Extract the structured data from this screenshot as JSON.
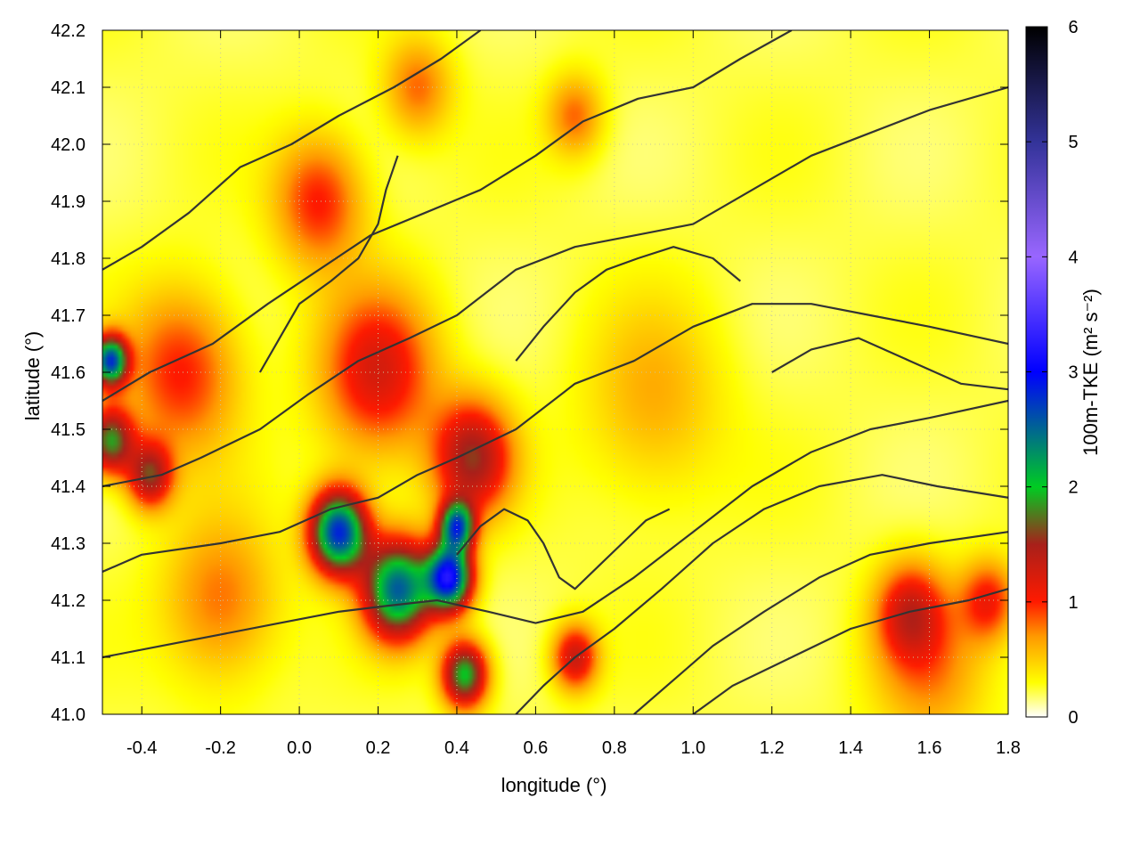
{
  "chart_data": {
    "type": "heatmap",
    "xlabel": "longitude (°)",
    "ylabel": "latitude (°)",
    "xlim": [
      -0.5,
      1.8
    ],
    "ylim": [
      41.0,
      42.2
    ],
    "xticks": [
      "-0.4",
      "-0.2",
      "0.0",
      "0.2",
      "0.4",
      "0.6",
      "0.8",
      "1.0",
      "1.2",
      "1.4",
      "1.6",
      "1.8"
    ],
    "xtick_values": [
      -0.4,
      -0.2,
      0.0,
      0.2,
      0.4,
      0.6,
      0.8,
      1.0,
      1.2,
      1.4,
      1.6,
      1.8
    ],
    "yticks": [
      "41.0",
      "41.1",
      "41.2",
      "41.3",
      "41.4",
      "41.5",
      "41.6",
      "41.7",
      "41.8",
      "41.9",
      "42.0",
      "42.1",
      "42.2"
    ],
    "ytick_values": [
      41.0,
      41.1,
      41.2,
      41.3,
      41.4,
      41.5,
      41.6,
      41.7,
      41.8,
      41.9,
      42.0,
      42.1,
      42.2
    ],
    "grid": true,
    "colorbar": {
      "label": "100m-TKE (m² s⁻²)",
      "range": [
        0,
        6
      ],
      "ticks": [
        "0",
        "1",
        "2",
        "3",
        "4",
        "5",
        "6"
      ],
      "tick_values": [
        0,
        1,
        2,
        3,
        4,
        5,
        6
      ],
      "colors": [
        {
          "v": 0.0,
          "c": "#ffffff"
        },
        {
          "v": 0.3,
          "c": "#ffff00"
        },
        {
          "v": 0.7,
          "c": "#ff9900"
        },
        {
          "v": 1.0,
          "c": "#ff1a00"
        },
        {
          "v": 1.5,
          "c": "#a8201a"
        },
        {
          "v": 2.0,
          "c": "#00cc22"
        },
        {
          "v": 3.0,
          "c": "#0000ff"
        },
        {
          "v": 4.0,
          "c": "#9966ff"
        },
        {
          "v": 5.0,
          "c": "#333399"
        },
        {
          "v": 6.0,
          "c": "#000000"
        }
      ]
    },
    "tke_hotspots": [
      {
        "lon": 0.1,
        "lat": 41.32,
        "value": 2.6,
        "spread": 0.05
      },
      {
        "lon": 0.25,
        "lat": 41.22,
        "value": 2.3,
        "spread": 0.06
      },
      {
        "lon": 0.38,
        "lat": 41.24,
        "value": 2.8,
        "spread": 0.04
      },
      {
        "lon": 0.42,
        "lat": 41.07,
        "value": 1.8,
        "spread": 0.04
      },
      {
        "lon": 0.4,
        "lat": 41.33,
        "value": 2.2,
        "spread": 0.03
      },
      {
        "lon": 0.44,
        "lat": 41.45,
        "value": 1.3,
        "spread": 0.07
      },
      {
        "lon": -0.48,
        "lat": 41.62,
        "value": 2.4,
        "spread": 0.03
      },
      {
        "lon": -0.48,
        "lat": 41.48,
        "value": 1.6,
        "spread": 0.04
      },
      {
        "lon": -0.38,
        "lat": 41.42,
        "value": 1.3,
        "spread": 0.04
      },
      {
        "lon": 0.2,
        "lat": 41.6,
        "value": 1.0,
        "spread": 0.1
      },
      {
        "lon": 0.05,
        "lat": 41.9,
        "value": 0.8,
        "spread": 0.08
      },
      {
        "lon": -0.3,
        "lat": 41.6,
        "value": 0.8,
        "spread": 0.1
      },
      {
        "lon": 0.7,
        "lat": 41.1,
        "value": 1.1,
        "spread": 0.04
      },
      {
        "lon": 1.55,
        "lat": 41.18,
        "value": 0.9,
        "spread": 0.06
      },
      {
        "lon": 1.75,
        "lat": 41.2,
        "value": 0.8,
        "spread": 0.05
      },
      {
        "lon": 1.6,
        "lat": 41.08,
        "value": 0.5,
        "spread": 0.1
      },
      {
        "lon": 0.3,
        "lat": 42.1,
        "value": 0.6,
        "spread": 0.06
      },
      {
        "lon": 0.7,
        "lat": 42.05,
        "value": 0.6,
        "spread": 0.05
      },
      {
        "lon": -0.2,
        "lat": 41.2,
        "value": 0.6,
        "spread": 0.1
      },
      {
        "lon": 0.9,
        "lat": 41.55,
        "value": 0.4,
        "spread": 0.12
      }
    ],
    "contours": [
      [
        [
          -0.5,
          41.25
        ],
        [
          -0.4,
          41.28
        ],
        [
          -0.2,
          41.3
        ],
        [
          -0.05,
          41.32
        ],
        [
          0.08,
          41.36
        ],
        [
          0.2,
          41.38
        ],
        [
          0.3,
          41.42
        ],
        [
          0.4,
          41.45
        ],
        [
          0.55,
          41.5
        ],
        [
          0.7,
          41.58
        ],
        [
          0.85,
          41.62
        ],
        [
          1.0,
          41.68
        ],
        [
          1.15,
          41.72
        ],
        [
          1.3,
          41.72
        ],
        [
          1.45,
          41.7
        ],
        [
          1.6,
          41.68
        ],
        [
          1.8,
          41.65
        ]
      ],
      [
        [
          -0.5,
          41.4
        ],
        [
          -0.35,
          41.42
        ],
        [
          -0.25,
          41.45
        ],
        [
          -0.1,
          41.5
        ],
        [
          0.02,
          41.56
        ],
        [
          0.15,
          41.62
        ],
        [
          0.28,
          41.66
        ],
        [
          0.4,
          41.7
        ],
        [
          0.55,
          41.78
        ],
        [
          0.7,
          41.82
        ],
        [
          0.85,
          41.84
        ],
        [
          1.0,
          41.86
        ],
        [
          1.15,
          41.92
        ],
        [
          1.3,
          41.98
        ],
        [
          1.45,
          42.02
        ],
        [
          1.6,
          42.06
        ],
        [
          1.8,
          42.1
        ]
      ],
      [
        [
          -0.5,
          41.55
        ],
        [
          -0.38,
          41.6
        ],
        [
          -0.22,
          41.65
        ],
        [
          -0.08,
          41.72
        ],
        [
          0.05,
          41.78
        ],
        [
          0.18,
          41.84
        ],
        [
          0.32,
          41.88
        ],
        [
          0.46,
          41.92
        ],
        [
          0.6,
          41.98
        ],
        [
          0.72,
          42.04
        ],
        [
          0.86,
          42.08
        ],
        [
          1.0,
          42.1
        ],
        [
          1.12,
          42.15
        ],
        [
          1.25,
          42.2
        ]
      ],
      [
        [
          -0.5,
          41.78
        ],
        [
          -0.4,
          41.82
        ],
        [
          -0.28,
          41.88
        ],
        [
          -0.15,
          41.96
        ],
        [
          -0.02,
          42.0
        ],
        [
          0.1,
          42.05
        ],
        [
          0.24,
          42.1
        ],
        [
          0.36,
          42.15
        ],
        [
          0.46,
          42.2
        ]
      ],
      [
        [
          -0.5,
          41.1
        ],
        [
          -0.35,
          41.12
        ],
        [
          -0.2,
          41.14
        ],
        [
          -0.05,
          41.16
        ],
        [
          0.1,
          41.18
        ],
        [
          0.22,
          41.19
        ],
        [
          0.35,
          41.2
        ],
        [
          0.48,
          41.18
        ],
        [
          0.6,
          41.16
        ],
        [
          0.72,
          41.18
        ],
        [
          0.85,
          41.24
        ],
        [
          1.0,
          41.32
        ],
        [
          1.15,
          41.4
        ],
        [
          1.3,
          41.46
        ],
        [
          1.45,
          41.5
        ],
        [
          1.6,
          41.52
        ],
        [
          1.8,
          41.55
        ]
      ],
      [
        [
          0.55,
          41.0
        ],
        [
          0.62,
          41.05
        ],
        [
          0.7,
          41.1
        ],
        [
          0.8,
          41.15
        ],
        [
          0.92,
          41.22
        ],
        [
          1.05,
          41.3
        ],
        [
          1.18,
          41.36
        ],
        [
          1.32,
          41.4
        ],
        [
          1.48,
          41.42
        ],
        [
          1.62,
          41.4
        ],
        [
          1.8,
          41.38
        ]
      ],
      [
        [
          0.85,
          41.0
        ],
        [
          0.95,
          41.06
        ],
        [
          1.05,
          41.12
        ],
        [
          1.18,
          41.18
        ],
        [
          1.32,
          41.24
        ],
        [
          1.45,
          41.28
        ],
        [
          1.6,
          41.3
        ],
        [
          1.8,
          41.32
        ]
      ],
      [
        [
          1.0,
          41.0
        ],
        [
          1.1,
          41.05
        ],
        [
          1.25,
          41.1
        ],
        [
          1.4,
          41.15
        ],
        [
          1.55,
          41.18
        ],
        [
          1.7,
          41.2
        ],
        [
          1.8,
          41.22
        ]
      ],
      [
        [
          0.4,
          41.28
        ],
        [
          0.46,
          41.33
        ],
        [
          0.52,
          41.36
        ],
        [
          0.58,
          41.34
        ],
        [
          0.62,
          41.3
        ],
        [
          0.66,
          41.24
        ],
        [
          0.7,
          41.22
        ],
        [
          0.76,
          41.26
        ],
        [
          0.82,
          41.3
        ],
        [
          0.88,
          41.34
        ],
        [
          0.94,
          41.36
        ]
      ],
      [
        [
          -0.1,
          41.6
        ],
        [
          -0.05,
          41.66
        ],
        [
          0.0,
          41.72
        ],
        [
          0.08,
          41.76
        ],
        [
          0.15,
          41.8
        ],
        [
          0.2,
          41.86
        ],
        [
          0.22,
          41.92
        ],
        [
          0.25,
          41.98
        ]
      ],
      [
        [
          0.55,
          41.62
        ],
        [
          0.62,
          41.68
        ],
        [
          0.7,
          41.74
        ],
        [
          0.78,
          41.78
        ],
        [
          0.86,
          41.8
        ],
        [
          0.95,
          41.82
        ],
        [
          1.05,
          41.8
        ],
        [
          1.12,
          41.76
        ]
      ],
      [
        [
          1.2,
          41.6
        ],
        [
          1.3,
          41.64
        ],
        [
          1.42,
          41.66
        ],
        [
          1.55,
          41.62
        ],
        [
          1.68,
          41.58
        ],
        [
          1.8,
          41.57
        ]
      ]
    ]
  }
}
